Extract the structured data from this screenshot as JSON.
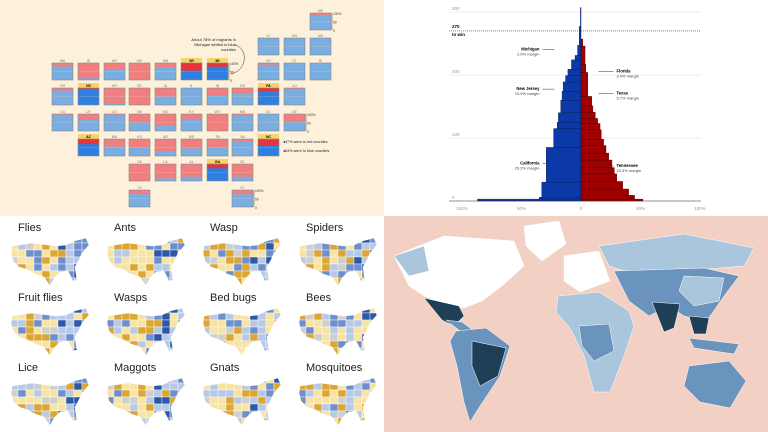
{
  "colors": {
    "red": "#f08080",
    "blue": "#7aaee0",
    "red_hl": "#e8333a",
    "blue_hl": "#2f7fe0",
    "highlight": "#f8d26a",
    "dem": "#0b3aa8",
    "rep": "#a00000",
    "map_pink": "#f2d0c4"
  },
  "chart_data": [
    {
      "type": "bar",
      "subtype": "tile-grid stacked",
      "annotation": "About 78% of migrants in Michigan settled in blue counties",
      "legend": [
        "37% went to red counties",
        "63% went to blue counties"
      ],
      "legend_state": "NC",
      "scale_ticks": [
        "100%",
        "50",
        "0"
      ],
      "states": [
        {
          "s": "ME",
          "r": 0,
          "c": 10,
          "red": 0.15
        },
        {
          "s": "VT",
          "r": 1,
          "c": 8,
          "red": 0
        },
        {
          "s": "NH",
          "r": 1,
          "c": 9,
          "red": 0
        },
        {
          "s": "MA",
          "r": 1,
          "c": 10,
          "red": 0
        },
        {
          "s": "WA",
          "r": 2,
          "c": 0,
          "red": 0.2
        },
        {
          "s": "ID",
          "r": 2,
          "c": 1,
          "red": 0.9
        },
        {
          "s": "MT",
          "r": 2,
          "c": 2,
          "red": 0.4
        },
        {
          "s": "ND",
          "r": 2,
          "c": 3,
          "red": 1
        },
        {
          "s": "MN",
          "r": 2,
          "c": 4,
          "red": 0.25
        },
        {
          "s": "WI",
          "r": 2,
          "c": 5,
          "red": 0.45,
          "hl": true
        },
        {
          "s": "MI",
          "r": 2,
          "c": 6,
          "red": 0.22,
          "hl": true
        },
        {
          "s": "NY",
          "r": 2,
          "c": 8,
          "red": 0.1
        },
        {
          "s": "CT",
          "r": 2,
          "c": 9,
          "red": 0
        },
        {
          "s": "RI",
          "r": 2,
          "c": 10,
          "red": 0
        },
        {
          "s": "OR",
          "r": 3,
          "c": 0,
          "red": 0.15
        },
        {
          "s": "NV",
          "r": 3,
          "c": 1,
          "red": 0.05,
          "hl": true
        },
        {
          "s": "WY",
          "r": 3,
          "c": 2,
          "red": 0.9
        },
        {
          "s": "SD",
          "r": 3,
          "c": 3,
          "red": 1
        },
        {
          "s": "IA",
          "r": 3,
          "c": 4,
          "red": 0.5
        },
        {
          "s": "IL",
          "r": 3,
          "c": 5,
          "red": 0
        },
        {
          "s": "IN",
          "r": 3,
          "c": 6,
          "red": 0.45
        },
        {
          "s": "OH",
          "r": 3,
          "c": 7,
          "red": 0.3
        },
        {
          "s": "PA",
          "r": 3,
          "c": 8,
          "red": 0.2,
          "hl": true
        },
        {
          "s": "NJ",
          "r": 3,
          "c": 9,
          "red": 0.05
        },
        {
          "s": "CA",
          "r": 4,
          "c": 0,
          "red": 0.05
        },
        {
          "s": "UT",
          "r": 4,
          "c": 1,
          "red": 0.35
        },
        {
          "s": "CO",
          "r": 4,
          "c": 2,
          "red": 0.05
        },
        {
          "s": "NE",
          "r": 4,
          "c": 3,
          "red": 0.5
        },
        {
          "s": "MO",
          "r": 4,
          "c": 4,
          "red": 0.7
        },
        {
          "s": "KY",
          "r": 4,
          "c": 5,
          "red": 0.35
        },
        {
          "s": "WV",
          "r": 4,
          "c": 6,
          "red": 1
        },
        {
          "s": "MD",
          "r": 4,
          "c": 7,
          "red": 0.1
        },
        {
          "s": "DC",
          "r": 4,
          "c": 8,
          "red": 0
        },
        {
          "s": "DE",
          "r": 4,
          "c": 9,
          "red": 0.45
        },
        {
          "s": "AZ",
          "r": 5,
          "c": 1,
          "red": 0.3,
          "hl": true
        },
        {
          "s": "NM",
          "r": 5,
          "c": 2,
          "red": 0.45
        },
        {
          "s": "KS",
          "r": 5,
          "c": 3,
          "red": 0.5
        },
        {
          "s": "AR",
          "r": 5,
          "c": 4,
          "red": 0.7
        },
        {
          "s": "MS",
          "r": 5,
          "c": 5,
          "red": 0.55
        },
        {
          "s": "TN",
          "r": 5,
          "c": 6,
          "red": 0.5
        },
        {
          "s": "VA",
          "r": 5,
          "c": 7,
          "red": 0.15
        },
        {
          "s": "NC",
          "r": 5,
          "c": 8,
          "red": 0.37,
          "hl": true
        },
        {
          "s": "OK",
          "r": 6,
          "c": 3,
          "red": 1
        },
        {
          "s": "LA",
          "r": 6,
          "c": 4,
          "red": 0.85
        },
        {
          "s": "AL",
          "r": 6,
          "c": 5,
          "red": 0.75
        },
        {
          "s": "GA",
          "r": 6,
          "c": 6,
          "red": 0.25,
          "hl": true
        },
        {
          "s": "SC",
          "r": 6,
          "c": 7,
          "red": 0.75
        },
        {
          "s": "TX",
          "r": 7,
          "c": 3,
          "red": 0.25
        },
        {
          "s": "FL",
          "r": 7,
          "c": 7,
          "red": 0.25
        }
      ]
    },
    {
      "type": "bar",
      "subtype": "cumulative electoral votes by margin",
      "ylim": [
        0,
        300
      ],
      "yticks": [
        0,
        100,
        200,
        300
      ],
      "xticks": [
        "100%",
        "50%",
        "0",
        "50%",
        "100%"
      ],
      "xlim": [
        -100,
        100
      ],
      "threshold": {
        "value": 270,
        "label1": "270",
        "label2": "to win"
      },
      "dem": [
        [
          87,
          3
        ],
        [
          35,
          3
        ],
        [
          33,
          24
        ],
        [
          29.2,
          55
        ],
        [
          23,
          30
        ],
        [
          20,
          10
        ],
        [
          19,
          15
        ],
        [
          17,
          20
        ],
        [
          15.9,
          14
        ],
        [
          15,
          15
        ],
        [
          13,
          10
        ],
        [
          11,
          10
        ],
        [
          8,
          15
        ],
        [
          5,
          7
        ],
        [
          2.9,
          16
        ],
        [
          1.5,
          30
        ],
        [
          0.5,
          30
        ]
      ],
      "rep": [
        [
          52,
          3
        ],
        [
          45,
          6
        ],
        [
          40,
          10
        ],
        [
          35,
          12
        ],
        [
          30,
          12
        ],
        [
          28,
          10
        ],
        [
          26,
          12
        ],
        [
          23.3,
          11
        ],
        [
          21,
          12
        ],
        [
          19,
          10
        ],
        [
          17,
          15
        ],
        [
          16,
          10
        ],
        [
          14,
          8
        ],
        [
          12,
          10
        ],
        [
          10,
          10
        ],
        [
          9,
          15
        ],
        [
          5.7,
          38
        ],
        [
          4,
          13
        ],
        [
          3.4,
          29
        ],
        [
          1.5,
          11
        ]
      ],
      "labels": [
        {
          "name": "Michigan",
          "margin": "2.9% margin",
          "side": "dem",
          "ev": 239
        },
        {
          "name": "New Jersey",
          "margin": "15.9% margin",
          "side": "dem",
          "ev": 176
        },
        {
          "name": "California",
          "margin": "29.2% margin",
          "side": "dem",
          "ev": 58
        },
        {
          "name": "Florida",
          "margin": "3.4% margin",
          "side": "rep",
          "ev": 204
        },
        {
          "name": "Texas",
          "margin": "5.7% margin",
          "side": "rep",
          "ev": 169
        },
        {
          "name": "Tennessee",
          "margin": "23.3% margin",
          "side": "rep",
          "ev": 54
        }
      ]
    },
    {
      "type": "heatmap",
      "subtype": "small-multiple US maps",
      "titles": [
        "Flies",
        "Ants",
        "Wasp",
        "Spiders",
        "Fruit flies",
        "Wasps",
        "Bed bugs",
        "Bees",
        "Lice",
        "Maggots",
        "Gnats",
        "Mosquitoes"
      ],
      "palette": [
        "#f7e3a3",
        "#dba634",
        "#b7c9e6",
        "#6e8fcb",
        "#2d58a8",
        "#cfcfcf"
      ]
    },
    {
      "type": "heatmap",
      "subtype": "world choropleth",
      "palette": [
        "#ffffff",
        "#a9c6dc",
        "#6a93bd",
        "#1f3f57"
      ]
    }
  ]
}
